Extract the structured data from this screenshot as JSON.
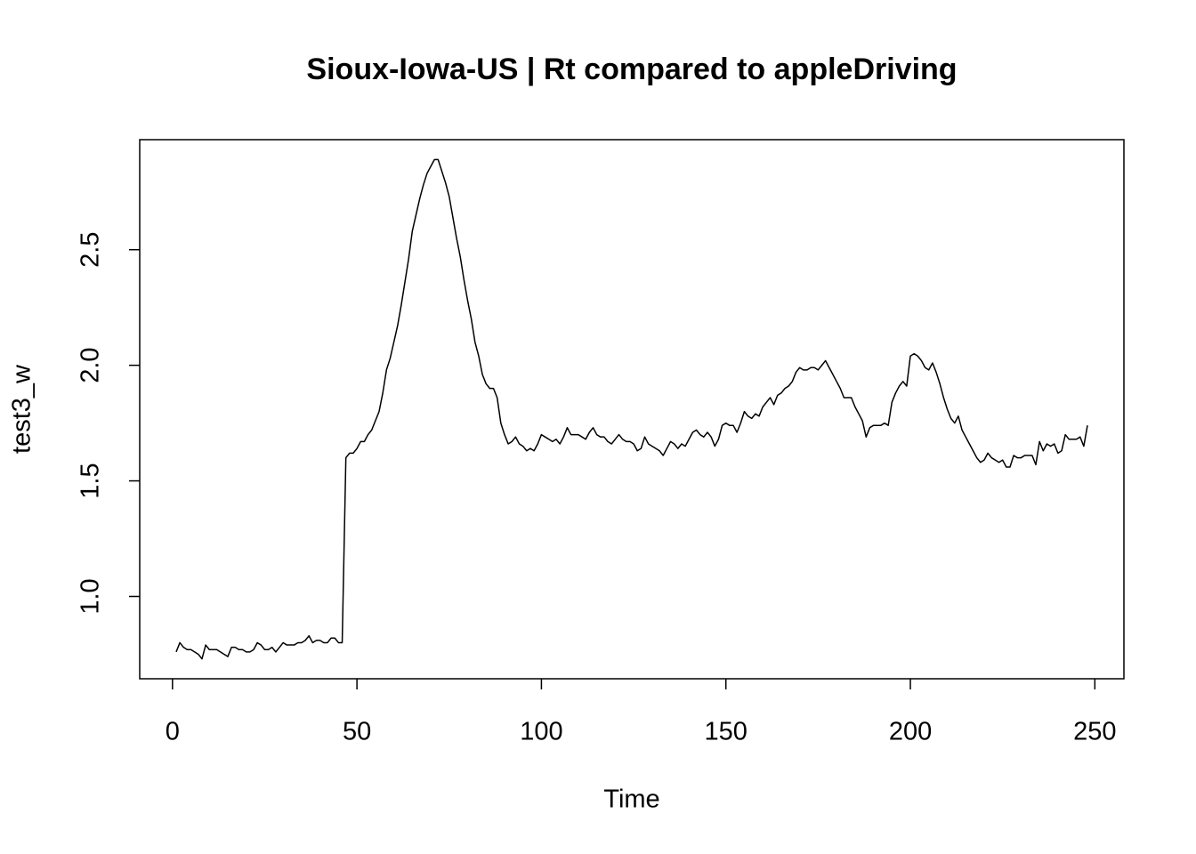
{
  "chart_data": {
    "type": "line",
    "title": "Sioux-Iowa-US | Rt compared to appleDriving",
    "xlabel": "Time",
    "ylabel": "test3_w",
    "x": [
      1,
      2,
      3,
      4,
      5,
      6,
      7,
      8,
      9,
      10,
      11,
      12,
      13,
      14,
      15,
      16,
      17,
      18,
      19,
      20,
      21,
      22,
      23,
      24,
      25,
      26,
      27,
      28,
      29,
      30,
      31,
      32,
      33,
      34,
      35,
      36,
      37,
      38,
      39,
      40,
      41,
      42,
      43,
      44,
      45,
      46,
      47,
      48,
      49,
      50,
      51,
      52,
      53,
      54,
      55,
      56,
      57,
      58,
      59,
      60,
      61,
      62,
      63,
      64,
      65,
      66,
      67,
      68,
      69,
      70,
      71,
      72,
      73,
      74,
      75,
      76,
      77,
      78,
      79,
      80,
      81,
      82,
      83,
      84,
      85,
      86,
      87,
      88,
      89,
      90,
      91,
      92,
      93,
      94,
      95,
      96,
      97,
      98,
      99,
      100,
      101,
      102,
      103,
      104,
      105,
      106,
      107,
      108,
      109,
      110,
      111,
      112,
      113,
      114,
      115,
      116,
      117,
      118,
      119,
      120,
      121,
      122,
      123,
      124,
      125,
      126,
      127,
      128,
      129,
      130,
      131,
      132,
      133,
      134,
      135,
      136,
      137,
      138,
      139,
      140,
      141,
      142,
      143,
      144,
      145,
      146,
      147,
      148,
      149,
      150,
      151,
      152,
      153,
      154,
      155,
      156,
      157,
      158,
      159,
      160,
      161,
      162,
      163,
      164,
      165,
      166,
      167,
      168,
      169,
      170,
      171,
      172,
      173,
      174,
      175,
      176,
      177,
      178,
      179,
      180,
      181,
      182,
      183,
      184,
      185,
      186,
      187,
      188,
      189,
      190,
      191,
      192,
      193,
      194,
      195,
      196,
      197,
      198,
      199,
      200,
      201,
      202,
      203,
      204,
      205,
      206,
      207,
      208,
      209,
      210,
      211,
      212,
      213,
      214,
      215,
      216,
      217,
      218,
      219,
      220,
      221,
      222,
      223,
      224,
      225,
      226,
      227,
      228,
      229,
      230,
      231,
      232,
      233,
      234,
      235,
      236,
      237,
      238,
      239,
      240,
      241,
      242,
      243,
      244,
      245,
      246,
      247,
      248
    ],
    "series": [
      {
        "name": "test3_w",
        "color": "#000000",
        "values": [
          0.76,
          0.8,
          0.78,
          0.77,
          0.77,
          0.76,
          0.75,
          0.73,
          0.79,
          0.77,
          0.77,
          0.77,
          0.76,
          0.75,
          0.74,
          0.78,
          0.78,
          0.77,
          0.77,
          0.76,
          0.76,
          0.77,
          0.8,
          0.79,
          0.77,
          0.77,
          0.78,
          0.76,
          0.78,
          0.8,
          0.79,
          0.79,
          0.79,
          0.8,
          0.8,
          0.81,
          0.83,
          0.8,
          0.81,
          0.81,
          0.8,
          0.8,
          0.82,
          0.82,
          0.8,
          0.8,
          1.6,
          1.62,
          1.62,
          1.64,
          1.67,
          1.67,
          1.7,
          1.72,
          1.76,
          1.8,
          1.88,
          1.98,
          2.03,
          2.1,
          2.17,
          2.26,
          2.36,
          2.46,
          2.58,
          2.65,
          2.72,
          2.78,
          2.83,
          2.86,
          2.89,
          2.89,
          2.84,
          2.79,
          2.73,
          2.64,
          2.55,
          2.47,
          2.37,
          2.28,
          2.2,
          2.1,
          2.04,
          1.96,
          1.92,
          1.9,
          1.9,
          1.86,
          1.75,
          1.7,
          1.66,
          1.67,
          1.69,
          1.66,
          1.65,
          1.63,
          1.64,
          1.63,
          1.66,
          1.7,
          1.69,
          1.68,
          1.67,
          1.68,
          1.66,
          1.69,
          1.73,
          1.7,
          1.7,
          1.7,
          1.69,
          1.68,
          1.71,
          1.73,
          1.7,
          1.69,
          1.69,
          1.67,
          1.66,
          1.68,
          1.7,
          1.68,
          1.67,
          1.67,
          1.66,
          1.63,
          1.64,
          1.69,
          1.66,
          1.65,
          1.64,
          1.63,
          1.61,
          1.64,
          1.67,
          1.66,
          1.64,
          1.66,
          1.65,
          1.68,
          1.71,
          1.72,
          1.7,
          1.69,
          1.71,
          1.69,
          1.65,
          1.68,
          1.74,
          1.75,
          1.74,
          1.74,
          1.71,
          1.75,
          1.8,
          1.78,
          1.77,
          1.79,
          1.78,
          1.82,
          1.84,
          1.86,
          1.83,
          1.87,
          1.88,
          1.9,
          1.91,
          1.93,
          1.97,
          1.99,
          1.98,
          1.98,
          1.99,
          1.99,
          1.98,
          2.0,
          2.02,
          1.99,
          1.96,
          1.93,
          1.9,
          1.86,
          1.86,
          1.86,
          1.82,
          1.79,
          1.76,
          1.69,
          1.73,
          1.74,
          1.74,
          1.74,
          1.75,
          1.74,
          1.84,
          1.88,
          1.91,
          1.93,
          1.91,
          2.04,
          2.05,
          2.04,
          2.02,
          1.99,
          1.98,
          2.01,
          1.97,
          1.92,
          1.86,
          1.81,
          1.77,
          1.75,
          1.78,
          1.72,
          1.69,
          1.66,
          1.63,
          1.6,
          1.58,
          1.59,
          1.62,
          1.6,
          1.59,
          1.58,
          1.59,
          1.56,
          1.56,
          1.61,
          1.6,
          1.6,
          1.61,
          1.61,
          1.61,
          1.57,
          1.67,
          1.63,
          1.66,
          1.65,
          1.66,
          1.62,
          1.63,
          1.7,
          1.68,
          1.68,
          1.68,
          1.69,
          1.65,
          1.74
        ]
      }
    ],
    "xlim": [
      -8.88,
      257.88
    ],
    "ylim": [
      0.644,
      2.976
    ],
    "xticks": [
      0,
      50,
      100,
      150,
      200,
      250
    ],
    "yticks": [
      {
        "value": 1,
        "label": "1.0"
      },
      1.5,
      {
        "value": 2,
        "label": "2.0"
      },
      2.5
    ]
  }
}
